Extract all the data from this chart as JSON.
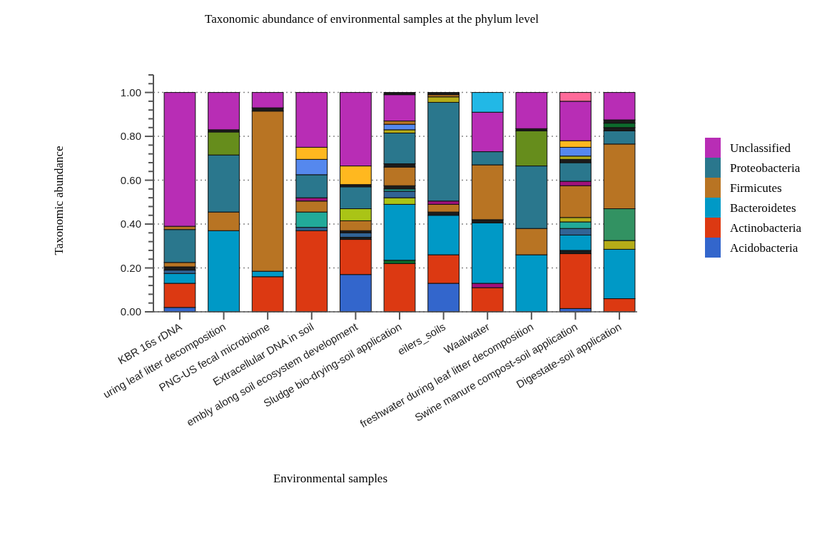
{
  "chart_data": {
    "type": "bar",
    "stacked": true,
    "title": "Taxonomic abundance of environmental samples at the phylum level",
    "xlabel": "Environmental samples",
    "ylabel": "Taxonomic abundance",
    "categories": [
      "KBR 16s rDNA",
      "uring leaf litter decomposition",
      "PNG-US fecal microbiome",
      "Extracellular DNA in soil",
      "embly along soil ecosystem development",
      "Sludge bio-drying-soil application",
      "eilers_soils",
      "Waalwater",
      "freshwater during leaf litter decomposition",
      "Swine manure compost-soil application",
      "Digestate-soil application"
    ],
    "ylim": [
      0,
      1.08
    ],
    "yticks": [
      {
        "value": 0,
        "label": "0.00"
      },
      {
        "value": 0.04,
        "label": null
      },
      {
        "value": 0.08,
        "label": null
      },
      {
        "value": 0.12,
        "label": null
      },
      {
        "value": 0.16,
        "label": null
      },
      {
        "value": 0.2,
        "label": "0.20"
      },
      {
        "value": 0.24,
        "label": null
      },
      {
        "value": 0.28,
        "label": null
      },
      {
        "value": 0.32,
        "label": null
      },
      {
        "value": 0.36,
        "label": null
      },
      {
        "value": 0.4,
        "label": "0.40"
      },
      {
        "value": 0.44,
        "label": null
      },
      {
        "value": 0.48,
        "label": null
      },
      {
        "value": 0.52,
        "label": null
      },
      {
        "value": 0.56,
        "label": null
      },
      {
        "value": 0.6,
        "label": "0.60"
      },
      {
        "value": 0.64,
        "label": null
      },
      {
        "value": 0.68,
        "label": null
      },
      {
        "value": 0.72,
        "label": null
      },
      {
        "value": 0.76,
        "label": null
      },
      {
        "value": 0.8,
        "label": "0.80"
      },
      {
        "value": 0.84,
        "label": null
      },
      {
        "value": 0.88,
        "label": null
      },
      {
        "value": 0.92,
        "label": null
      },
      {
        "value": 0.96,
        "label": null
      },
      {
        "value": 1,
        "label": "1.00"
      },
      {
        "value": 1.04,
        "label": null
      },
      {
        "value": 1.08,
        "label": null
      }
    ],
    "grid": "y",
    "legend": "right",
    "series": [
      {
        "name": "Acidobacteria",
        "color": "#3366cc",
        "values": [
          0.02,
          null,
          null,
          null,
          0.17,
          null,
          0.13,
          null,
          null,
          0.015,
          null
        ]
      },
      {
        "name": "Actinobacteria",
        "color": "#dc3912",
        "values": [
          0.11,
          null,
          0.16,
          0.37,
          0.16,
          0.22,
          0.13,
          0.11,
          null,
          0.25,
          0.06
        ]
      },
      {
        "values": [
          null,
          null,
          null,
          null,
          null,
          0.015,
          null,
          0.02,
          null,
          0.015,
          null
        ],
        "colors": [
          null,
          null,
          null,
          null,
          null,
          "#0c6b2c",
          null,
          "#a0107c",
          null,
          "#1c1c1c",
          null
        ]
      },
      {
        "name": "Bacteroidetes",
        "color": "#0099c6",
        "values": [
          0.045,
          0.37,
          0.025,
          null,
          null,
          0.255,
          0.18,
          0.275,
          0.26,
          0.07,
          0.225
        ]
      },
      {
        "values": [
          0.015,
          null,
          null,
          0.015,
          0.01,
          0.03,
          0.015,
          0.015,
          null,
          0.03,
          0.04
        ],
        "colors": [
          "#316395",
          null,
          null,
          "#316395",
          "#1c1c1c",
          "#aac416",
          "#1c1c1c",
          "#1c1c1c",
          null,
          "#316395",
          "#b5ad18"
        ]
      },
      {
        "values": [
          0.015,
          null,
          null,
          0.07,
          0.02,
          0.03,
          null,
          null,
          null,
          0.03,
          0.145
        ],
        "colors": [
          "#1c1c1c",
          null,
          null,
          "#22aa99",
          "#316395",
          "#316395",
          null,
          null,
          null,
          "#22aa99",
          "#329262"
        ]
      },
      {
        "values": [
          null,
          null,
          null,
          null,
          0.01,
          0.01,
          null,
          null,
          null,
          0.02,
          null
        ],
        "colors": [
          null,
          null,
          null,
          null,
          "#1c1c1c",
          "#22aa99",
          null,
          null,
          null,
          "#b5ad18",
          null
        ]
      },
      {
        "values": [
          null,
          null,
          null,
          null,
          null,
          0.015,
          null,
          null,
          null,
          null,
          null
        ],
        "colors": [
          null,
          null,
          null,
          null,
          null,
          "#1c1c1c",
          null,
          null,
          null,
          null,
          null
        ]
      },
      {
        "name": "Firmicutes",
        "color": "#b87423",
        "values": [
          0.02,
          0.085,
          0.73,
          0.05,
          0.045,
          0.085,
          0.035,
          0.25,
          0.12,
          0.145,
          0.295
        ]
      },
      {
        "values": [
          null,
          null,
          null,
          0.015,
          0.055,
          0.015,
          0.015,
          null,
          null,
          0.02,
          null
        ],
        "colors": [
          null,
          null,
          null,
          "#a0107c",
          "#aac416",
          "#1c1c1c",
          "#a0107c",
          null,
          null,
          "#a0107c",
          null
        ]
      },
      {
        "name": "Proteobacteria",
        "color": "#2a778d",
        "values": [
          0.15,
          0.26,
          null,
          0.105,
          0.1,
          0.14,
          0.45,
          0.06,
          0.285,
          0.085,
          0.06
        ]
      },
      {
        "values": [
          0.015,
          0.105,
          0.015,
          0.07,
          0.01,
          0.015,
          0.025,
          null,
          0.16,
          0.015,
          0.015
        ],
        "colors": [
          "#b87423",
          "#668d1c",
          "#1c1c1c",
          "#5588ee",
          "#1c1c1c",
          "#b5ad18",
          "#b5ad18",
          null,
          "#668d1c",
          "#1c1c1c",
          "#1c1c1c"
        ]
      },
      {
        "values": [
          null,
          0.01,
          null,
          0.055,
          0.085,
          0.025,
          0.01,
          null,
          0.01,
          0.015,
          0.02
        ],
        "colors": [
          null,
          "#1c1c1c",
          null,
          "#ffb81f",
          "#ffb81f",
          "#5588ee",
          "#b87423",
          null,
          "#1c1c1c",
          "#b5ad18",
          "#0c6b2c"
        ]
      },
      {
        "values": [
          null,
          null,
          null,
          null,
          null,
          0.015,
          0.01,
          null,
          null,
          0.04,
          0.015
        ],
        "colors": [
          null,
          null,
          null,
          null,
          null,
          "#b87423",
          "#1c1c1c",
          null,
          null,
          "#5588ee",
          "#1c1c1c"
        ]
      },
      {
        "values": [
          null,
          null,
          null,
          null,
          null,
          null,
          null,
          null,
          null,
          0.03,
          null
        ],
        "colors": [
          null,
          null,
          null,
          null,
          null,
          null,
          null,
          null,
          null,
          "#ffb81f",
          null
        ]
      },
      {
        "name": "Unclassified",
        "color": "#b82db5",
        "values": [
          0.61,
          0.17,
          0.07,
          0.25,
          0.335,
          0.12,
          null,
          0.18,
          0.165,
          0.18,
          0.125
        ]
      },
      {
        "values": [
          null,
          null,
          null,
          null,
          null,
          0.01,
          null,
          0.09,
          null,
          0.04,
          null
        ],
        "colors": [
          null,
          null,
          null,
          null,
          null,
          "#1c1c1c",
          null,
          "#22b8e6",
          null,
          "#ff6b9a",
          null
        ]
      }
    ]
  }
}
